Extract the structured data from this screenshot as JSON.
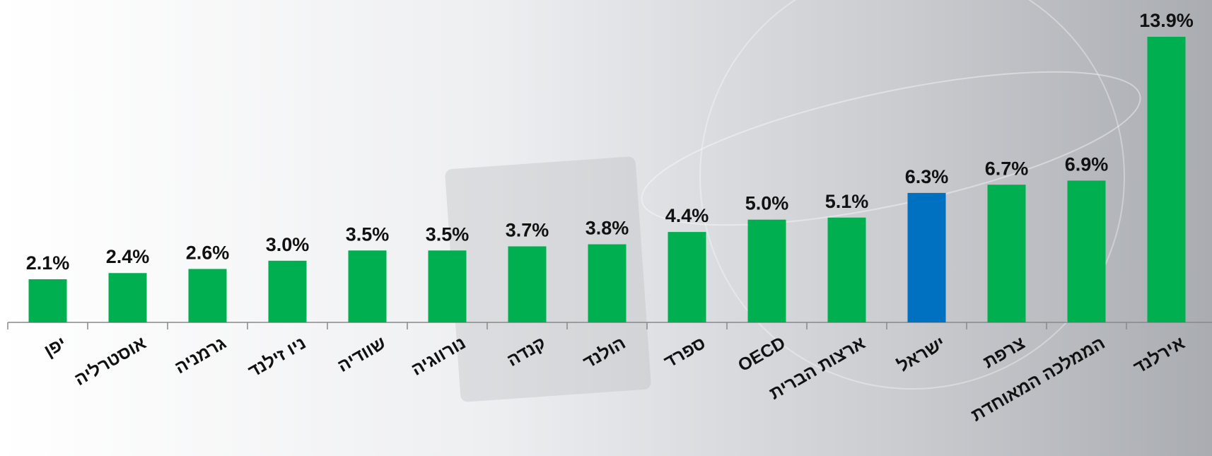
{
  "chart_data": {
    "type": "bar",
    "categories": [
      "יפן",
      "אוסטרליה",
      "גרמניה",
      "ניו זילנד",
      "שוודיה",
      "נורווגיה",
      "קנדה",
      "הולנד",
      "ספרד",
      "OECD",
      "ארצות הברית",
      "ישראל",
      "צרפת",
      "הממלכה המאוחדת",
      "אירלנד"
    ],
    "values": [
      2.1,
      2.4,
      2.6,
      3.0,
      3.5,
      3.5,
      3.7,
      3.8,
      4.4,
      5.0,
      5.1,
      6.3,
      6.7,
      6.9,
      13.9
    ],
    "value_labels": [
      "2.1%",
      "2.4%",
      "2.6%",
      "3.0%",
      "3.5%",
      "3.5%",
      "3.7%",
      "3.8%",
      "4.4%",
      "5.0%",
      "5.1%",
      "6.3%",
      "6.7%",
      "6.9%",
      "13.9%"
    ],
    "colors": [
      "#00b050",
      "#00b050",
      "#00b050",
      "#00b050",
      "#00b050",
      "#00b050",
      "#00b050",
      "#00b050",
      "#00b050",
      "#00b050",
      "#00b050",
      "#0070c0",
      "#00b050",
      "#00b050",
      "#00b050"
    ]
  }
}
